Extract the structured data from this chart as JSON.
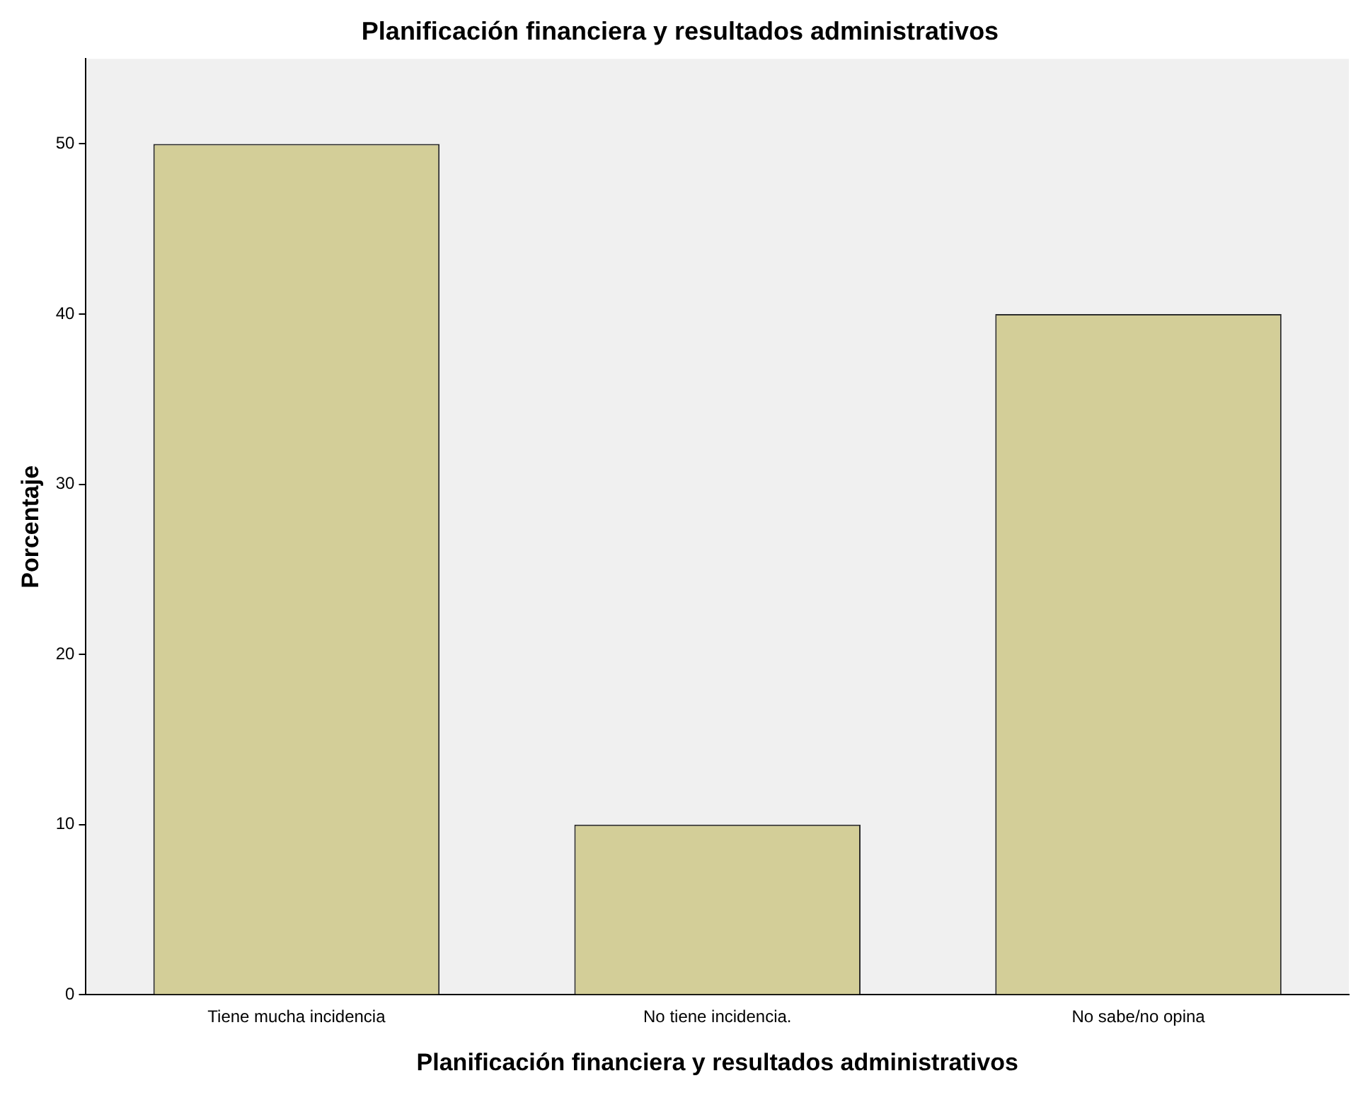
{
  "chart_data": {
    "type": "bar",
    "title": "Planificación financiera y resultados administrativos",
    "xlabel": "Planificación financiera y resultados administrativos",
    "ylabel": "Porcentaje",
    "categories": [
      "Tiene mucha incidencia",
      "No tiene incidencia.",
      "No sabe/no opina"
    ],
    "values": [
      50,
      10,
      40
    ],
    "color": "#d3ce98",
    "ylim": [
      0,
      55
    ],
    "yticks": [
      0,
      10,
      20,
      30,
      40,
      50
    ],
    "grid": false,
    "legend": false
  }
}
